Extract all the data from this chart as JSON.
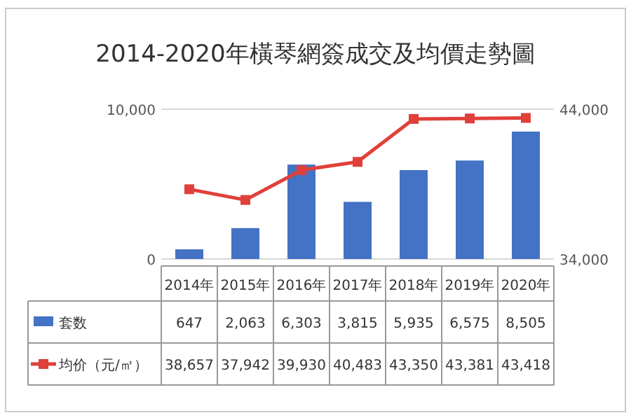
{
  "chart_data": {
    "type": "bar",
    "title": "2014-2020年橫琴網簽成交及均價走勢圖",
    "categories": [
      "2014年",
      "2015年",
      "2016年",
      "2017年",
      "2018年",
      "2019年",
      "2020年"
    ],
    "series": [
      {
        "name": "套数",
        "color": "#4472c4",
        "values": [
          647,
          2063,
          6303,
          3815,
          5935,
          6575,
          8505
        ],
        "value_labels": [
          "647",
          "2,063",
          "6,303",
          "3,815",
          "5,935",
          "6,575",
          "8,505"
        ]
      },
      {
        "name": "均价（元/㎡）",
        "type": "line",
        "axis": "y2",
        "color": "#e0403a",
        "marker": "square",
        "values": [
          38657,
          37942,
          39930,
          40483,
          43350,
          43381,
          43418
        ],
        "value_labels": [
          "38,657",
          "37,942",
          "39,930",
          "40,483",
          "43,350",
          "43,381",
          "43,418"
        ]
      }
    ],
    "ylim": [
      0,
      10000
    ],
    "yticks": [
      0,
      {
        "value": 10000,
        "label": "10,000"
      }
    ],
    "y2lim": [
      34000,
      44000
    ],
    "y2ticks": [
      {
        "value": 34000,
        "label": "34,000"
      },
      {
        "value": 44000,
        "label": "44,000"
      }
    ],
    "grid": "y",
    "legend": "bottom"
  }
}
